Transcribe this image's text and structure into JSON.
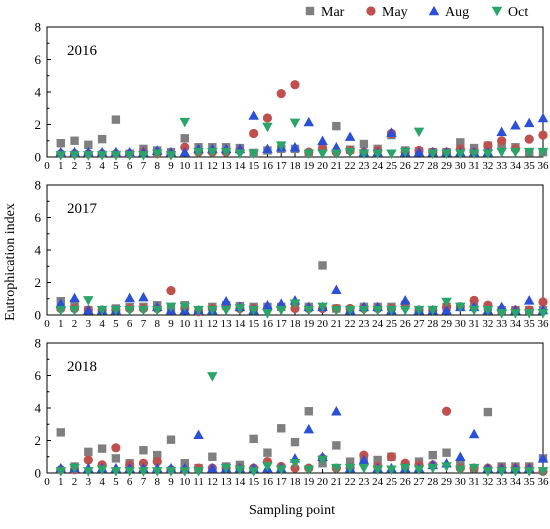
{
  "chart_data": {
    "type": "scatter",
    "xlabel": "Sampling point",
    "ylabel": "Eutrophication index",
    "xlim": [
      0,
      36
    ],
    "ylim": [
      0,
      8
    ],
    "x_ticks": [
      0,
      1,
      2,
      3,
      4,
      5,
      6,
      7,
      8,
      9,
      10,
      11,
      12,
      13,
      14,
      15,
      16,
      17,
      18,
      19,
      20,
      21,
      22,
      23,
      24,
      25,
      26,
      27,
      28,
      29,
      30,
      31,
      32,
      33,
      34,
      35,
      36
    ],
    "y_ticks": [
      0,
      2,
      4,
      6,
      8
    ],
    "legend": {
      "placement": "top-right",
      "entries": [
        {
          "name": "Mar",
          "marker": "square",
          "color": "#7f7f7f"
        },
        {
          "name": "May",
          "marker": "circle",
          "color": "#c0504d"
        },
        {
          "name": "Aug",
          "marker": "triangle-up",
          "color": "#2b50d8"
        },
        {
          "name": "Oct",
          "marker": "triangle-down",
          "color": "#2aa56a"
        }
      ]
    },
    "panels": [
      {
        "label": "2016",
        "series": [
          {
            "name": "Mar",
            "values": [
              0.85,
              1.0,
              0.75,
              1.1,
              2.3,
              0.2,
              0.5,
              0.4,
              0.3,
              1.15,
              0.6,
              0.6,
              0.6,
              0.55,
              0.25,
              0.4,
              0.5,
              0.5,
              0.2,
              0.6,
              1.9,
              0.45,
              0.8,
              0.5,
              1.35,
              0.4,
              0.35,
              0.3,
              0.3,
              0.9,
              0.55,
              0.7,
              0.8,
              0.6,
              0.3,
              0.3
            ]
          },
          {
            "name": "May",
            "values": [
              0.2,
              0.2,
              0.2,
              0.2,
              0.2,
              0.2,
              0.3,
              0.2,
              0.2,
              0.6,
              0.3,
              0.3,
              0.3,
              0.4,
              1.45,
              2.4,
              3.9,
              4.45,
              0.3,
              0.5,
              0.3,
              0.4,
              0.3,
              0.4,
              1.45,
              0.3,
              0.4,
              0.3,
              0.3,
              0.5,
              0.3,
              0.7,
              1.0,
              0.5,
              1.1,
              1.35
            ]
          },
          {
            "name": "Aug",
            "values": [
              0.3,
              0.3,
              0.3,
              0.3,
              0.3,
              0.3,
              0.3,
              0.4,
              0.3,
              0.3,
              0.5,
              0.5,
              0.5,
              0.5,
              2.55,
              0.5,
              0.6,
              0.6,
              2.15,
              1.0,
              0.6,
              1.25,
              0.3,
              0.3,
              1.5,
              0.3,
              0.3,
              0.3,
              0.3,
              0.3,
              0.3,
              0.3,
              1.55,
              1.95,
              2.1,
              2.4
            ]
          },
          {
            "name": "Oct",
            "values": [
              0.1,
              0.1,
              0.1,
              0.1,
              0.1,
              0.1,
              0.1,
              0.2,
              0.1,
              2.15,
              0.3,
              0.3,
              0.3,
              0.2,
              0.2,
              1.85,
              0.7,
              2.1,
              0.2,
              0.2,
              0.2,
              0.3,
              0.2,
              0.2,
              0.2,
              0.3,
              1.55,
              0.2,
              0.2,
              0.2,
              0.2,
              0.2,
              0.3,
              0.3,
              0.3,
              0.3
            ]
          }
        ]
      },
      {
        "label": "2017",
        "series": [
          {
            "name": "Mar",
            "values": [
              0.85,
              0.7,
              0.3,
              0.3,
              0.4,
              0.5,
              0.5,
              0.6,
              0.4,
              0.6,
              0.3,
              0.5,
              0.6,
              0.55,
              0.5,
              0.5,
              0.5,
              0.7,
              0.5,
              3.05,
              0.4,
              0.3,
              0.5,
              0.5,
              0.5,
              0.6,
              0.3,
              0.3,
              0.5,
              0.5,
              0.5,
              0.5,
              0.3,
              0.3,
              0.3,
              0.3
            ]
          },
          {
            "name": "May",
            "values": [
              0.4,
              0.4,
              0.3,
              0.3,
              0.3,
              0.4,
              0.4,
              0.4,
              1.5,
              0.4,
              0.2,
              0.4,
              0.5,
              0.4,
              0.4,
              0.4,
              0.5,
              0.4,
              0.4,
              0.4,
              0.4,
              0.4,
              0.4,
              0.4,
              0.4,
              0.7,
              0.3,
              0.3,
              0.5,
              0.5,
              0.9,
              0.6,
              0.3,
              0.3,
              0.3,
              0.8
            ]
          },
          {
            "name": "Aug",
            "values": [
              0.7,
              1.05,
              0.3,
              0.3,
              0.3,
              1.05,
              1.1,
              0.5,
              0.3,
              0.3,
              0.3,
              0.3,
              0.85,
              0.5,
              0.3,
              0.6,
              0.7,
              0.9,
              0.5,
              0.5,
              1.55,
              0.3,
              0.5,
              0.5,
              0.3,
              0.9,
              0.3,
              0.3,
              0.3,
              0.5,
              0.5,
              0.3,
              0.5,
              0.3,
              0.9,
              0.3
            ]
          },
          {
            "name": "Oct",
            "values": [
              0.3,
              0.3,
              0.9,
              0.3,
              0.3,
              0.3,
              0.3,
              0.3,
              0.5,
              0.5,
              0.3,
              0.3,
              0.3,
              0.4,
              0.3,
              0.1,
              0.3,
              0.7,
              0.3,
              0.5,
              0.3,
              0.3,
              0.3,
              0.3,
              0.3,
              0.3,
              0.3,
              0.3,
              0.8,
              0.5,
              0.3,
              0.3,
              0.1,
              0.1,
              0.1,
              0.1
            ]
          }
        ]
      },
      {
        "label": "2018",
        "series": [
          {
            "name": "Mar",
            "values": [
              2.5,
              0.4,
              1.3,
              1.5,
              0.9,
              0.6,
              1.4,
              1.1,
              2.05,
              0.6,
              0.3,
              1.0,
              0.4,
              0.5,
              2.1,
              1.25,
              2.75,
              1.9,
              3.8,
              0.6,
              1.7,
              0.7,
              0.9,
              0.8,
              1.0,
              0.5,
              0.7,
              1.1,
              1.25,
              0.5,
              0.3,
              3.75,
              0.4,
              0.4,
              0.4,
              0.9
            ]
          },
          {
            "name": "May",
            "values": [
              0.2,
              0.2,
              0.8,
              0.5,
              1.55,
              0.5,
              0.6,
              0.7,
              0.2,
              0.2,
              0.3,
              0.3,
              0.3,
              0.3,
              0.3,
              0.7,
              0.4,
              0.3,
              0.3,
              0.9,
              0.3,
              0.3,
              1.1,
              0.4,
              1.0,
              0.6,
              0.5,
              0.5,
              3.8,
              0.3,
              0.3,
              0.3,
              0.3,
              0.3,
              0.3,
              0.1
            ]
          },
          {
            "name": "Aug",
            "values": [
              0.3,
              0.3,
              0.3,
              0.3,
              0.3,
              0.3,
              0.3,
              0.3,
              0.3,
              0.3,
              2.35,
              0.3,
              0.3,
              0.3,
              0.3,
              0.3,
              0.3,
              0.9,
              2.7,
              1.0,
              3.8,
              0.3,
              0.8,
              0.3,
              0.3,
              0.3,
              0.3,
              0.5,
              0.6,
              1.0,
              2.4,
              0.3,
              0.3,
              0.3,
              0.3,
              0.9
            ]
          },
          {
            "name": "Oct",
            "values": [
              0.1,
              0.3,
              0.1,
              0.2,
              0.1,
              0.1,
              0.1,
              0.1,
              0.1,
              0.1,
              0.1,
              5.95,
              0.3,
              0.2,
              0.1,
              0.4,
              0.2,
              0.6,
              0.2,
              0.8,
              0.3,
              0.3,
              0.3,
              0.2,
              0.2,
              0.3,
              0.2,
              0.3,
              0.4,
              0.2,
              0.3,
              0.1,
              0.1,
              0.1,
              0.1,
              0.1
            ]
          }
        ]
      }
    ]
  }
}
